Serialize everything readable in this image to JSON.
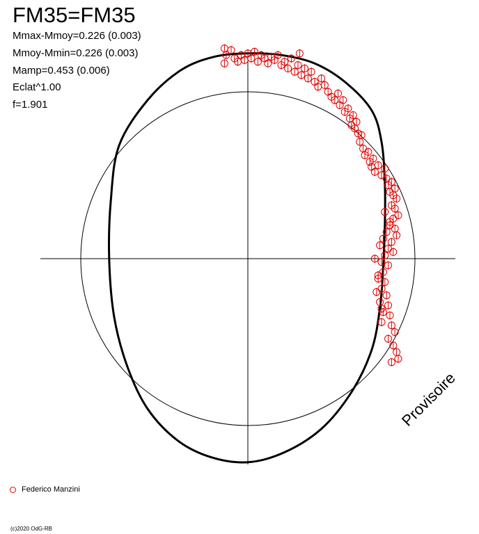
{
  "header": {
    "title": "FM35=FM35",
    "stats": [
      "Mmax-Mmoy=0.226 (0.003)",
      "Mmoy-Mmin=0.226 (0.003)",
      "Mamp=0.453 (0.006)",
      "Eclat^1.00",
      "f=1.901"
    ]
  },
  "watermark": "Provisoire",
  "legend": {
    "label": "Federico Manzini",
    "color": "#e00000"
  },
  "footer": "(c)2020 OdG-RB",
  "chart_data": {
    "type": "scatter",
    "projection": "polar",
    "reference_circle_radius": 1.0,
    "xlim": [
      -1.24,
      1.24
    ],
    "ylim": [
      -1.24,
      1.24
    ],
    "curve": {
      "color": "#000000",
      "points": [
        [
          0.0,
          1.23
        ],
        [
          0.2,
          1.22
        ],
        [
          0.4,
          1.17
        ],
        [
          0.58,
          1.06
        ],
        [
          0.74,
          0.89
        ],
        [
          0.8,
          0.7
        ],
        [
          0.82,
          0.45
        ],
        [
          0.82,
          0.2
        ],
        [
          0.81,
          -0.05
        ],
        [
          0.79,
          -0.3
        ],
        [
          0.74,
          -0.55
        ],
        [
          0.62,
          -0.8
        ],
        [
          0.44,
          -1.02
        ],
        [
          0.22,
          -1.16
        ],
        [
          0.0,
          -1.22
        ],
        [
          -0.22,
          -1.19
        ],
        [
          -0.42,
          -1.09
        ],
        [
          -0.6,
          -0.9
        ],
        [
          -0.72,
          -0.65
        ],
        [
          -0.8,
          -0.35
        ],
        [
          -0.83,
          0.0
        ],
        [
          -0.82,
          0.35
        ],
        [
          -0.77,
          0.68
        ],
        [
          -0.6,
          0.95
        ],
        [
          -0.4,
          1.13
        ],
        [
          -0.2,
          1.21
        ],
        [
          0.0,
          1.23
        ]
      ]
    },
    "series": [
      {
        "name": "Federico Manzini",
        "color": "#e00000",
        "points": [
          [
            -0.14,
            1.26
          ],
          [
            -0.13,
            1.22
          ],
          [
            -0.14,
            1.17
          ],
          [
            -0.1,
            1.25
          ],
          [
            -0.08,
            1.2
          ],
          [
            -0.06,
            1.18
          ],
          [
            -0.04,
            1.22
          ],
          [
            -0.02,
            1.19
          ],
          [
            0.0,
            1.23
          ],
          [
            0.02,
            1.2
          ],
          [
            0.04,
            1.24
          ],
          [
            0.06,
            1.18
          ],
          [
            0.08,
            1.22
          ],
          [
            0.1,
            1.2
          ],
          [
            0.12,
            1.17
          ],
          [
            0.14,
            1.21
          ],
          [
            0.16,
            1.19
          ],
          [
            0.18,
            1.22
          ],
          [
            0.2,
            1.16
          ],
          [
            0.22,
            1.18
          ],
          [
            0.24,
            1.14
          ],
          [
            0.26,
            1.2
          ],
          [
            0.28,
            1.12
          ],
          [
            0.3,
            1.16
          ],
          [
            0.31,
            1.23
          ],
          [
            0.32,
            1.1
          ],
          [
            0.34,
            1.14
          ],
          [
            0.36,
            1.08
          ],
          [
            0.38,
            1.12
          ],
          [
            0.4,
            1.06
          ],
          [
            0.42,
            1.03
          ],
          [
            0.44,
            1.08
          ],
          [
            0.46,
            1.04
          ],
          [
            0.48,
            1.0
          ],
          [
            0.5,
            0.97
          ],
          [
            0.52,
            0.95
          ],
          [
            0.54,
            0.99
          ],
          [
            0.55,
            0.92
          ],
          [
            0.57,
            0.95
          ],
          [
            0.58,
            0.88
          ],
          [
            0.6,
            0.9
          ],
          [
            0.61,
            0.84
          ],
          [
            0.62,
            0.8
          ],
          [
            0.63,
            0.86
          ],
          [
            0.64,
            0.78
          ],
          [
            0.65,
            0.82
          ],
          [
            0.66,
            0.75
          ],
          [
            0.67,
            0.7
          ],
          [
            0.68,
            0.74
          ],
          [
            0.69,
            0.66
          ],
          [
            0.7,
            0.62
          ],
          [
            0.72,
            0.64
          ],
          [
            0.73,
            0.58
          ],
          [
            0.74,
            0.55
          ],
          [
            0.75,
            0.6
          ],
          [
            0.76,
            0.52
          ],
          [
            0.78,
            0.56
          ],
          [
            0.8,
            0.5
          ],
          [
            0.82,
            0.54
          ],
          [
            0.83,
            0.48
          ],
          [
            0.84,
            0.44
          ],
          [
            0.86,
            0.46
          ],
          [
            0.85,
            0.4
          ],
          [
            0.87,
            0.38
          ],
          [
            0.88,
            0.42
          ],
          [
            0.89,
            0.36
          ],
          [
            0.86,
            0.32
          ],
          [
            0.88,
            0.3
          ],
          [
            0.9,
            0.26
          ],
          [
            0.87,
            0.24
          ],
          [
            0.85,
            0.2
          ],
          [
            0.88,
            0.18
          ],
          [
            0.89,
            0.14
          ],
          [
            0.86,
            0.1
          ],
          [
            0.84,
            0.06
          ],
          [
            0.87,
            0.04
          ],
          [
            0.82,
            0.02
          ],
          [
            0.8,
            -0.02
          ],
          [
            0.84,
            -0.04
          ],
          [
            0.81,
            -0.08
          ],
          [
            0.78,
            -0.1
          ],
          [
            0.82,
            -0.14
          ],
          [
            0.8,
            -0.18
          ],
          [
            0.77,
            -0.2
          ],
          [
            0.83,
            -0.22
          ],
          [
            0.79,
            -0.26
          ],
          [
            0.84,
            -0.28
          ],
          [
            0.81,
            -0.32
          ],
          [
            0.85,
            -0.34
          ],
          [
            0.8,
            -0.38
          ],
          [
            0.86,
            -0.4
          ],
          [
            0.88,
            -0.44
          ],
          [
            0.84,
            -0.48
          ],
          [
            0.87,
            -0.52
          ],
          [
            0.89,
            -0.56
          ],
          [
            0.9,
            -0.6
          ],
          [
            0.86,
            -0.62
          ],
          [
            0.8,
            -0.3
          ],
          [
            0.78,
            -0.12
          ],
          [
            0.79,
            0.08
          ],
          [
            0.81,
            0.12
          ],
          [
            0.76,
            0.0
          ],
          [
            0.83,
            0.16
          ],
          [
            0.85,
            0.22
          ],
          [
            0.82,
            0.28
          ]
        ]
      }
    ]
  }
}
